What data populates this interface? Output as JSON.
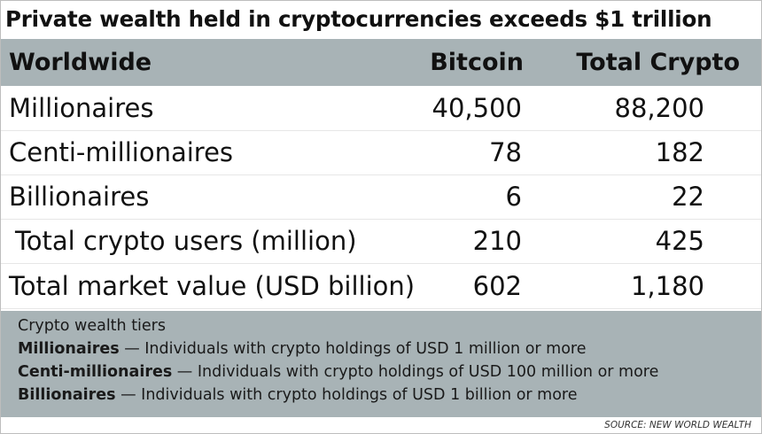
{
  "title": "Private wealth held in cryptocurrencies exceeds $1 trillion",
  "table": {
    "headers": [
      "Worldwide",
      "Bitcoin",
      "Total Crypto"
    ],
    "rows": [
      {
        "label": "Millionaires",
        "bitcoin": "40,500",
        "total": "88,200"
      },
      {
        "label": "Centi-millionaires",
        "bitcoin": "78",
        "total": "182"
      },
      {
        "label": "Billionaires",
        "bitcoin": "6",
        "total": "22"
      },
      {
        "label": "Total crypto users (million)",
        "bitcoin": "210",
        "total": "425"
      },
      {
        "label": "Total market value (USD billion)",
        "bitcoin": "602",
        "total": "1,180"
      }
    ]
  },
  "notes": {
    "heading": "Crypto wealth tiers",
    "items": [
      {
        "term": "Millionaires",
        "text": " — Individuals with crypto holdings of USD 1 million or more"
      },
      {
        "term": "Centi-millionaires",
        "text": " — Individuals with crypto holdings of USD 100 million or more"
      },
      {
        "term": "Billionaires",
        "text": " — Individuals with crypto holdings of USD 1 billion or more"
      }
    ]
  },
  "source": "SOURCE: NEW WORLD WEALTH",
  "colors": {
    "band": "#a8b3b6",
    "text": "#111111",
    "background": "#ffffff"
  }
}
